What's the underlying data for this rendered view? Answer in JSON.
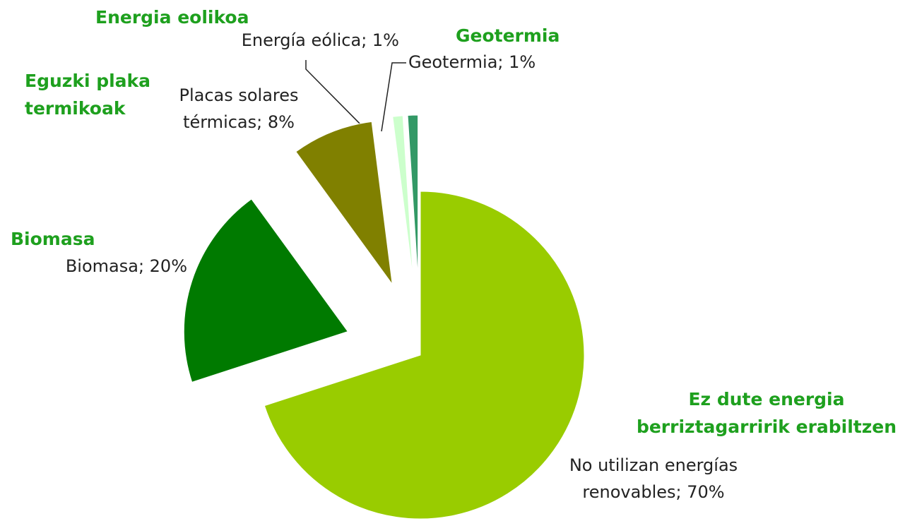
{
  "chart_data": {
    "type": "pie",
    "values": [
      70,
      20,
      8,
      1,
      1
    ],
    "value_labels": [
      "No utilizan energías\nrenovables; 70%",
      "Biomasa; 20%",
      "Placas solares\ntérmicas; 8%",
      "Energía eólica; 1%",
      "Geotermia; 1%"
    ],
    "colors": [
      "#99cc00",
      "#007a00",
      "#808000",
      "#ccffcc",
      "#339966"
    ],
    "annotations": [
      "Ez dute energia\nberriztagarririk erabiltzen",
      "Biomasa",
      "Eguzki plaka\ntermikoak",
      "Energia eolikoa",
      "Geotermia"
    ]
  }
}
